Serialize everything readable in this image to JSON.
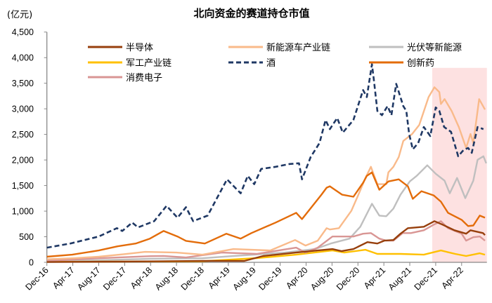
{
  "chart_data": {
    "type": "line",
    "title": "北向资金的赛道持仓市值",
    "ylabel": "(亿元)",
    "xlabel": "",
    "ylim": [
      0,
      4500
    ],
    "yticks": [
      "0",
      "500",
      "1,000",
      "1,500",
      "2,000",
      "2,500",
      "3,000",
      "3,500",
      "4,000",
      "4,500"
    ],
    "xlim": [
      "2016-12-01",
      "2022-07-28"
    ],
    "xticks": [
      "Dec-16",
      "Apr-17",
      "Aug-17",
      "Dec-17",
      "Apr-18",
      "Aug-18",
      "Dec-18",
      "Apr-19",
      "Aug-19",
      "Dec-19",
      "Apr-20",
      "Aug-20",
      "Dec-20",
      "Apr-21",
      "Aug-21",
      "Dec-21",
      "Apr-22"
    ],
    "grid": false,
    "legend_position": "top",
    "highlight": {
      "x_start": "2021-11-15",
      "x_end": "2022-07-28",
      "y_top": 3800,
      "color": "#FDE1E1"
    },
    "series": [
      {
        "name": "半导体",
        "color": "#973F0C",
        "dashed": false,
        "points": [
          [
            "2016-12-01",
            5
          ],
          [
            "2017-12-01",
            15
          ],
          [
            "2018-12-01",
            27
          ],
          [
            "2019-06-15",
            27
          ],
          [
            "2019-09-12",
            123
          ],
          [
            "2020-02-15",
            191
          ],
          [
            "2020-05-25",
            232
          ],
          [
            "2020-08-03",
            259
          ],
          [
            "2020-09-15",
            218
          ],
          [
            "2020-11-10",
            259
          ],
          [
            "2021-01-15",
            395
          ],
          [
            "2021-03-01",
            368
          ],
          [
            "2021-04-03",
            423
          ],
          [
            "2021-05-15",
            436
          ],
          [
            "2021-06-18",
            559
          ],
          [
            "2021-07-22",
            668
          ],
          [
            "2021-10-06",
            695
          ],
          [
            "2021-11-25",
            804
          ],
          [
            "2022-01-03",
            736
          ],
          [
            "2022-02-28",
            627
          ],
          [
            "2022-04-22",
            559
          ],
          [
            "2022-05-12",
            627
          ],
          [
            "2022-07-10",
            572
          ],
          [
            "2022-07-19",
            532
          ]
        ]
      },
      {
        "name": "新能源车产业链",
        "color": "#F9BA8A",
        "dashed": false,
        "points": [
          [
            "2016-12-01",
            60
          ],
          [
            "2017-04-01",
            80
          ],
          [
            "2017-08-01",
            110
          ],
          [
            "2017-12-01",
            160
          ],
          [
            "2018-03-06",
            204
          ],
          [
            "2018-08-01",
            190
          ],
          [
            "2018-12-01",
            150
          ],
          [
            "2019-04-25",
            259
          ],
          [
            "2019-10-15",
            232
          ],
          [
            "2020-02-10",
            436
          ],
          [
            "2020-03-28",
            327
          ],
          [
            "2020-05-25",
            423
          ],
          [
            "2020-07-06",
            668
          ],
          [
            "2020-07-21",
            641
          ],
          [
            "2020-09-03",
            668
          ],
          [
            "2020-11-01",
            1009
          ],
          [
            "2020-12-03",
            1322
          ],
          [
            "2021-01-06",
            1649
          ],
          [
            "2021-02-01",
            1867
          ],
          [
            "2021-03-01",
            1527
          ],
          [
            "2021-04-12",
            1527
          ],
          [
            "2021-04-22",
            1758
          ],
          [
            "2021-05-15",
            1867
          ],
          [
            "2021-06-10",
            2058
          ],
          [
            "2021-07-01",
            2372
          ],
          [
            "2021-08-12",
            2508
          ],
          [
            "2021-09-15",
            2685
          ],
          [
            "2021-10-28",
            3230
          ],
          [
            "2021-11-25",
            3421
          ],
          [
            "2021-12-18",
            3326
          ],
          [
            "2021-12-25",
            3094
          ],
          [
            "2022-01-12",
            3189
          ],
          [
            "2022-02-15",
            2958
          ],
          [
            "2022-03-18",
            2644
          ],
          [
            "2022-04-22",
            2235
          ],
          [
            "2022-05-12",
            2508
          ],
          [
            "2022-05-25",
            2331
          ],
          [
            "2022-06-22",
            3189
          ],
          [
            "2022-07-19",
            2985
          ]
        ]
      },
      {
        "name": "光伏等新能源",
        "color": "#BFBFBF",
        "dashed": false,
        "points": [
          [
            "2016-12-01",
            20
          ],
          [
            "2017-08-01",
            40
          ],
          [
            "2018-04-01",
            70
          ],
          [
            "2018-12-01",
            80
          ],
          [
            "2019-04-25",
            123
          ],
          [
            "2019-12-22",
            191
          ],
          [
            "2020-05-12",
            259
          ],
          [
            "2020-07-25",
            368
          ],
          [
            "2020-10-22",
            463
          ],
          [
            "2020-12-12",
            695
          ],
          [
            "2021-02-06",
            1145
          ],
          [
            "2021-03-10",
            913
          ],
          [
            "2021-04-12",
            900
          ],
          [
            "2021-05-15",
            1050
          ],
          [
            "2021-06-18",
            1322
          ],
          [
            "2021-08-01",
            1581
          ],
          [
            "2021-09-03",
            1690
          ],
          [
            "2021-10-22",
            1895
          ],
          [
            "2021-12-01",
            1731
          ],
          [
            "2022-01-12",
            1595
          ],
          [
            "2022-02-06",
            1349
          ],
          [
            "2022-03-10",
            1649
          ],
          [
            "2022-04-18",
            1254
          ],
          [
            "2022-05-25",
            1595
          ],
          [
            "2022-06-15",
            2004
          ],
          [
            "2022-07-12",
            2072
          ],
          [
            "2022-07-25",
            1935
          ]
        ]
      },
      {
        "name": "军工产业链",
        "color": "#FFC000",
        "dashed": false,
        "points": [
          [
            "2016-12-01",
            10
          ],
          [
            "2017-12-01",
            15
          ],
          [
            "2018-12-01",
            20
          ],
          [
            "2019-08-12",
            82
          ],
          [
            "2020-02-15",
            150
          ],
          [
            "2020-08-03",
            232
          ],
          [
            "2020-09-28",
            191
          ],
          [
            "2021-01-06",
            245
          ],
          [
            "2021-03-01",
            164
          ],
          [
            "2021-06-18",
            164
          ],
          [
            "2021-10-06",
            150
          ],
          [
            "2021-12-25",
            232
          ],
          [
            "2022-03-01",
            164
          ],
          [
            "2022-04-22",
            123
          ],
          [
            "2022-06-25",
            177
          ],
          [
            "2022-07-19",
            150
          ]
        ]
      },
      {
        "name": "酒",
        "color": "#1F3864",
        "dashed": true,
        "points": [
          [
            "2016-12-01",
            286
          ],
          [
            "2017-03-19",
            368
          ],
          [
            "2017-08-01",
            504
          ],
          [
            "2017-10-25",
            668
          ],
          [
            "2017-11-20",
            613
          ],
          [
            "2018-01-06",
            777
          ],
          [
            "2018-02-03",
            682
          ],
          [
            "2018-04-18",
            804
          ],
          [
            "2018-06-15",
            1104
          ],
          [
            "2018-08-06",
            872
          ],
          [
            "2018-09-15",
            1077
          ],
          [
            "2018-10-18",
            804
          ],
          [
            "2018-12-25",
            913
          ],
          [
            "2019-03-25",
            1622
          ],
          [
            "2019-05-28",
            1349
          ],
          [
            "2019-07-01",
            1690
          ],
          [
            "2019-08-01",
            1527
          ],
          [
            "2019-09-03",
            1826
          ],
          [
            "2019-11-10",
            1867
          ],
          [
            "2020-01-15",
            1922
          ],
          [
            "2020-02-28",
            1935
          ],
          [
            "2020-03-12",
            1622
          ],
          [
            "2020-04-22",
            2058
          ],
          [
            "2020-06-03",
            2331
          ],
          [
            "2020-07-01",
            2781
          ],
          [
            "2020-07-21",
            2603
          ],
          [
            "2020-08-25",
            2821
          ],
          [
            "2020-09-21",
            2535
          ],
          [
            "2020-11-10",
            2781
          ],
          [
            "2020-12-25",
            3367
          ],
          [
            "2021-01-12",
            3230
          ],
          [
            "2021-02-06",
            3871
          ],
          [
            "2021-02-15",
            3557
          ],
          [
            "2021-03-01",
            2958
          ],
          [
            "2021-03-22",
            2876
          ],
          [
            "2021-04-18",
            3053
          ],
          [
            "2021-05-06",
            2876
          ],
          [
            "2021-05-28",
            3489
          ],
          [
            "2021-07-01",
            3053
          ],
          [
            "2021-07-15",
            2958
          ],
          [
            "2021-07-28",
            2508
          ],
          [
            "2021-08-15",
            2208
          ],
          [
            "2021-09-10",
            2331
          ],
          [
            "2021-10-06",
            2644
          ],
          [
            "2021-11-06",
            2467
          ],
          [
            "2021-12-01",
            3026
          ],
          [
            "2021-12-18",
            2958
          ],
          [
            "2022-01-10",
            2644
          ],
          [
            "2022-02-12",
            2549
          ],
          [
            "2022-03-15",
            2072
          ],
          [
            "2022-04-10",
            2194
          ],
          [
            "2022-05-01",
            2235
          ],
          [
            "2022-05-18",
            2140
          ],
          [
            "2022-06-15",
            2644
          ],
          [
            "2022-07-12",
            2603
          ]
        ]
      },
      {
        "name": "创新药",
        "color": "#E36C0A",
        "dashed": false,
        "points": [
          [
            "2016-12-01",
            109
          ],
          [
            "2017-03-28",
            150
          ],
          [
            "2017-08-01",
            232
          ],
          [
            "2017-10-28",
            313
          ],
          [
            "2018-01-22",
            368
          ],
          [
            "2018-03-28",
            463
          ],
          [
            "2018-06-01",
            613
          ],
          [
            "2018-08-06",
            504
          ],
          [
            "2018-09-15",
            420
          ],
          [
            "2018-12-12",
            368
          ],
          [
            "2019-03-22",
            559
          ],
          [
            "2019-05-28",
            463
          ],
          [
            "2019-07-18",
            572
          ],
          [
            "2019-11-10",
            777
          ],
          [
            "2020-02-15",
            968
          ],
          [
            "2020-03-12",
            845
          ],
          [
            "2020-06-12",
            1322
          ],
          [
            "2020-07-06",
            1458
          ],
          [
            "2020-07-21",
            1486
          ],
          [
            "2020-09-18",
            1322
          ],
          [
            "2020-11-10",
            1281
          ],
          [
            "2020-12-25",
            1554
          ],
          [
            "2021-01-12",
            1690
          ],
          [
            "2021-02-06",
            1758
          ],
          [
            "2021-03-10",
            1418
          ],
          [
            "2021-04-22",
            1581
          ],
          [
            "2021-06-10",
            1622
          ],
          [
            "2021-07-22",
            1486
          ],
          [
            "2021-08-15",
            1240
          ],
          [
            "2021-09-25",
            1390
          ],
          [
            "2021-11-22",
            1308
          ],
          [
            "2021-12-25",
            1186
          ],
          [
            "2022-01-28",
            968
          ],
          [
            "2022-04-01",
            831
          ],
          [
            "2022-05-01",
            709
          ],
          [
            "2022-05-25",
            720
          ],
          [
            "2022-06-25",
            913
          ],
          [
            "2022-07-19",
            872
          ]
        ]
      },
      {
        "name": "消费电子",
        "color": "#D99694",
        "dashed": false,
        "points": [
          [
            "2016-12-01",
            30
          ],
          [
            "2017-04-01",
            55
          ],
          [
            "2017-08-01",
            80
          ],
          [
            "2017-12-01",
            100
          ],
          [
            "2018-04-01",
            120
          ],
          [
            "2018-06-01",
            125
          ],
          [
            "2018-09-15",
            95
          ],
          [
            "2019-03-01",
            191
          ],
          [
            "2019-08-12",
            164
          ],
          [
            "2020-02-15",
            286
          ],
          [
            "2020-03-28",
            191
          ],
          [
            "2020-05-25",
            286
          ],
          [
            "2020-08-03",
            504
          ],
          [
            "2020-11-10",
            504
          ],
          [
            "2020-12-25",
            559
          ],
          [
            "2021-02-01",
            572
          ],
          [
            "2021-03-10",
            463
          ],
          [
            "2021-04-12",
            423
          ],
          [
            "2021-05-15",
            423
          ],
          [
            "2021-06-28",
            572
          ],
          [
            "2021-08-06",
            572
          ],
          [
            "2021-10-06",
            627
          ],
          [
            "2021-11-22",
            736
          ],
          [
            "2021-12-25",
            804
          ],
          [
            "2022-01-28",
            668
          ],
          [
            "2022-04-01",
            559
          ],
          [
            "2022-04-22",
            423
          ],
          [
            "2022-05-25",
            491
          ],
          [
            "2022-06-25",
            504
          ],
          [
            "2022-07-19",
            423
          ]
        ]
      }
    ]
  }
}
